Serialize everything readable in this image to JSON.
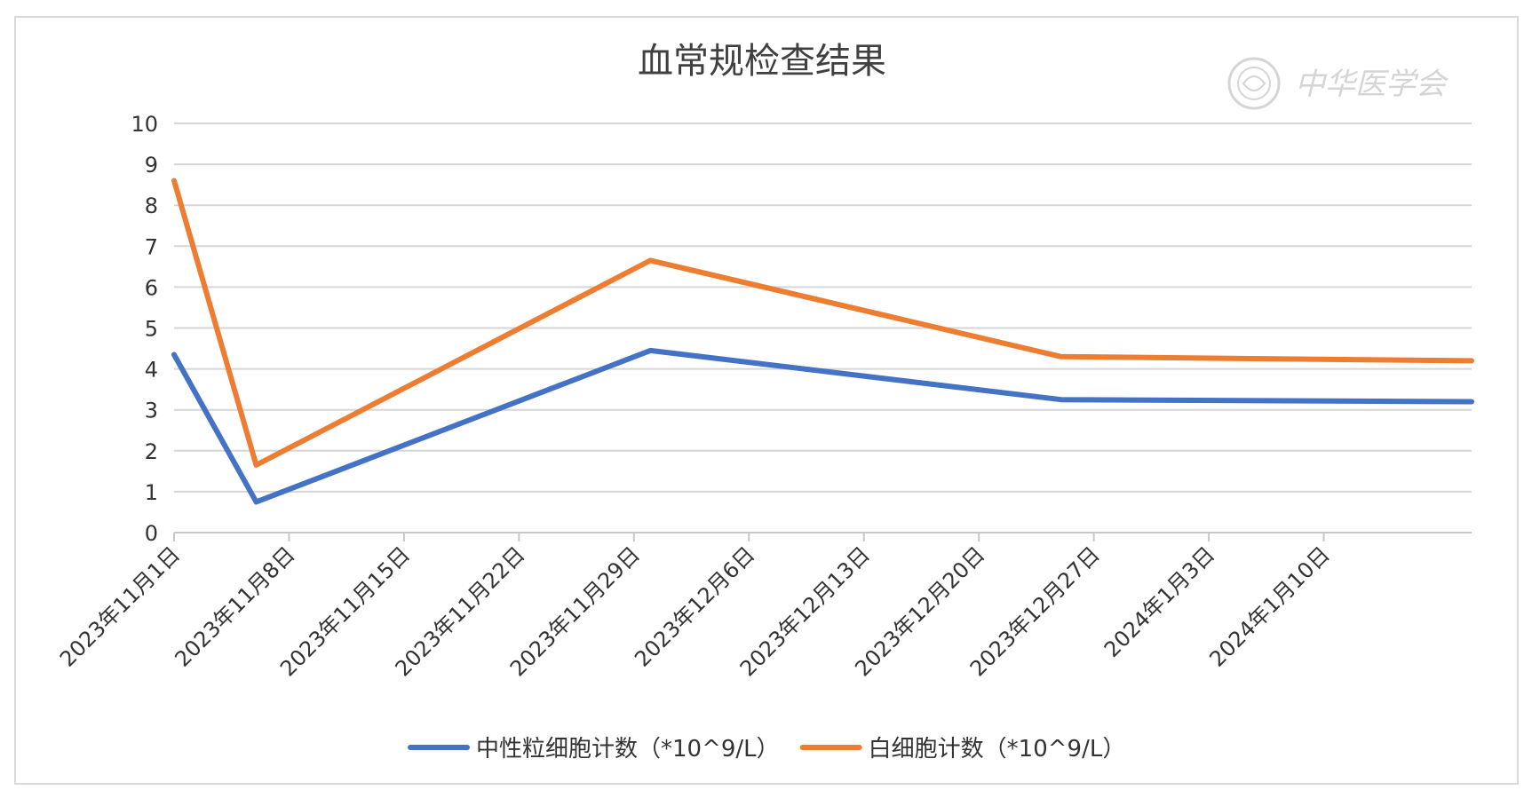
{
  "chart_data": {
    "type": "line",
    "title": "血常规检查结果",
    "xlabel": "",
    "ylabel": "",
    "ylim": [
      0,
      10
    ],
    "yticks": [
      0,
      1,
      2,
      3,
      4,
      5,
      6,
      7,
      8,
      9,
      10
    ],
    "xlim": [
      "2023-11-01",
      "2024-01-19"
    ],
    "x_tick_labels": [
      "2023年11月1日",
      "2023年11月8日",
      "2023年11月15日",
      "2023年11月22日",
      "2023年11月29日",
      "2023年12月6日",
      "2023年12月13日",
      "2023年12月20日",
      "2023年12月27日",
      "2024年1月3日",
      "2024年1月10日"
    ],
    "x_tick_dates": [
      "2023-11-01",
      "2023-11-08",
      "2023-11-15",
      "2023-11-22",
      "2023-11-29",
      "2023-12-06",
      "2023-12-13",
      "2023-12-20",
      "2023-12-27",
      "2024-01-03",
      "2024-01-10"
    ],
    "x": [
      "2023-11-01",
      "2023-11-06",
      "2023-11-30",
      "2023-12-25",
      "2024-01-19"
    ],
    "series": [
      {
        "name": "中性粒细胞计数（*10^9/L）",
        "color": "#4472c4",
        "values": [
          4.35,
          0.75,
          4.45,
          3.25,
          3.2
        ]
      },
      {
        "name": "白细胞计数（*10^9/L）",
        "color": "#ed7d31",
        "values": [
          8.6,
          1.65,
          6.65,
          4.3,
          4.2
        ]
      }
    ],
    "grid": true,
    "legend": "bottom"
  },
  "watermark": {
    "text": "中华医学会"
  }
}
